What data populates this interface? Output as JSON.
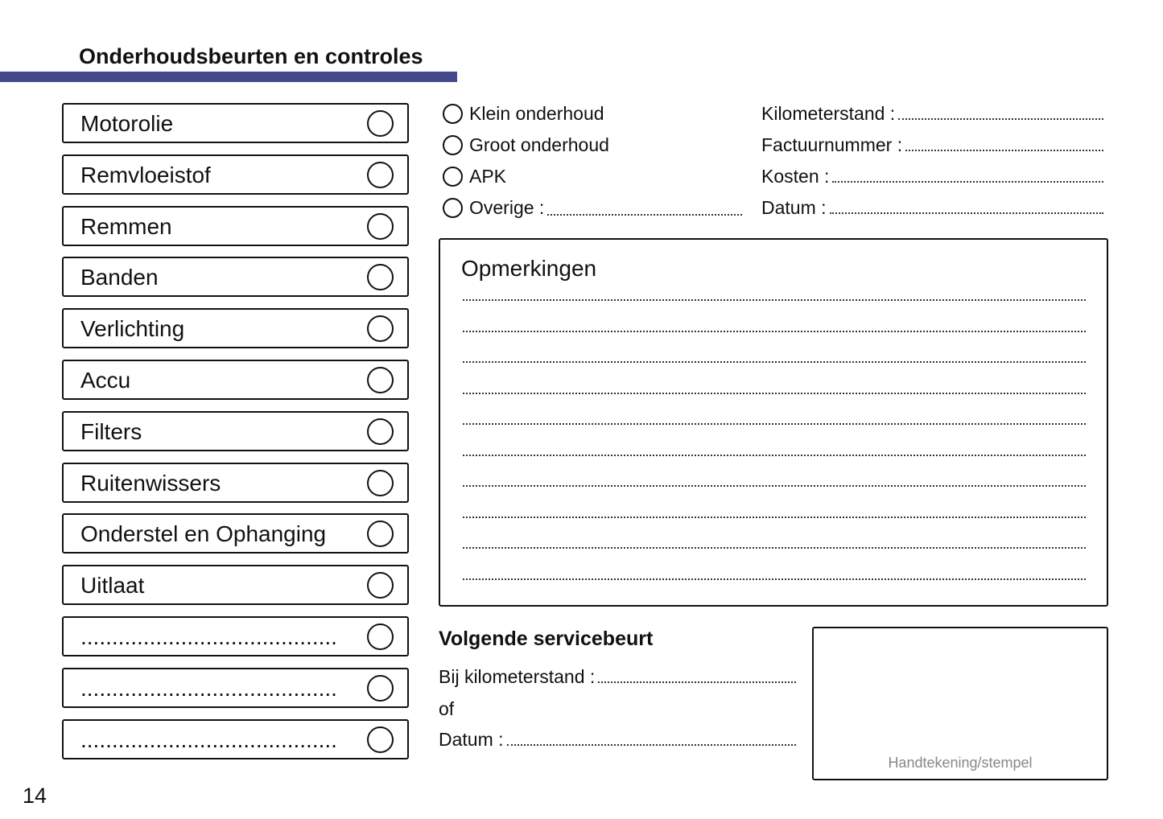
{
  "title": "Onderhoudsbeurten en controles",
  "colors": {
    "accent": "#434a8c"
  },
  "checklist": [
    "Motorolie",
    "Remvloeistof",
    "Remmen",
    "Banden",
    "Verlichting",
    "Accu",
    "Filters",
    "Ruitenwissers",
    "Onderstel en Ophanging",
    "Uitlaat",
    ".........................................",
    ".........................................",
    "........................................."
  ],
  "service_types": [
    "Klein onderhoud",
    "Groot onderhoud",
    "APK",
    "Overige :"
  ],
  "fields": [
    "Kilometerstand :",
    "Factuurnummer :",
    "Kosten :",
    "Datum :"
  ],
  "remarks": {
    "title": "Opmerkingen"
  },
  "next_service": {
    "title": "Volgende servicebeurt",
    "km_label": "Bij kilometerstand :",
    "or": "of",
    "date_label": "Datum :"
  },
  "stamp_label": "Handtekening/stempel",
  "page_number": "14"
}
